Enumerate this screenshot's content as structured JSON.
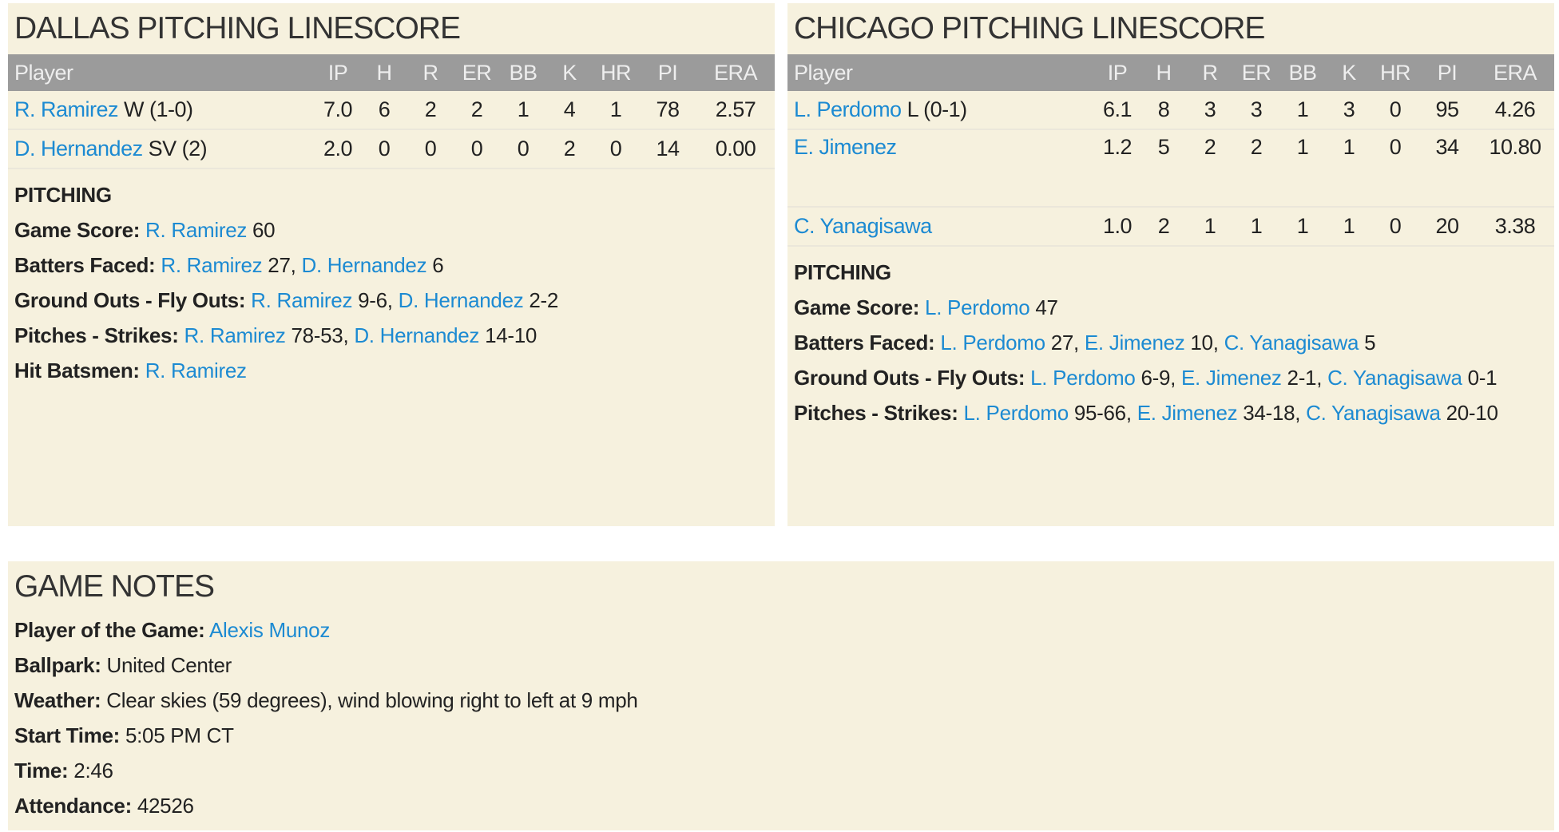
{
  "columns": [
    "Player",
    "IP",
    "H",
    "R",
    "ER",
    "BB",
    "K",
    "HR",
    "PI",
    "ERA"
  ],
  "dallas": {
    "title": "DALLAS PITCHING LINESCORE",
    "rows": [
      {
        "name": "R. Ramirez",
        "note": " W (1-0)",
        "stats": [
          "7.0",
          "6",
          "2",
          "2",
          "1",
          "4",
          "1",
          "78",
          "2.57"
        ]
      },
      {
        "name": "D. Hernandez",
        "note": " SV (2)",
        "stats": [
          "2.0",
          "0",
          "0",
          "0",
          "0",
          "2",
          "0",
          "14",
          "0.00"
        ]
      }
    ],
    "section_title": "PITCHING",
    "game_score": {
      "label": "Game Score:",
      "items": [
        {
          "name": "R. Ramirez",
          "val": " 60"
        }
      ]
    },
    "batters_faced": {
      "label": "Batters Faced:",
      "items": [
        {
          "name": "R. Ramirez",
          "val": " 27, "
        },
        {
          "name": "D. Hernandez",
          "val": " 6"
        }
      ]
    },
    "go_fo": {
      "label": "Ground Outs - Fly Outs:",
      "items": [
        {
          "name": "R. Ramirez",
          "val": " 9-6, "
        },
        {
          "name": "D. Hernandez",
          "val": " 2-2"
        }
      ]
    },
    "pitches": {
      "label": "Pitches - Strikes:",
      "items": [
        {
          "name": "R. Ramirez",
          "val": " 78-53, "
        },
        {
          "name": "D. Hernandez",
          "val": " 14-10"
        }
      ]
    },
    "hbp": {
      "label": "Hit Batsmen:",
      "items": [
        {
          "name": "R. Ramirez",
          "val": ""
        }
      ]
    }
  },
  "chicago": {
    "title": "CHICAGO PITCHING LINESCORE",
    "rows": [
      {
        "name": "L. Perdomo",
        "note": " L (0-1)",
        "stats": [
          "6.1",
          "8",
          "3",
          "3",
          "1",
          "3",
          "0",
          "95",
          "4.26"
        ]
      },
      {
        "name": "E. Jimenez",
        "note": "",
        "stats": [
          "1.2",
          "5",
          "2",
          "2",
          "1",
          "1",
          "0",
          "34",
          "10.80"
        ]
      },
      {
        "name": "C. Yanagisawa",
        "note": "",
        "stats": [
          "1.0",
          "2",
          "1",
          "1",
          "1",
          "1",
          "0",
          "20",
          "3.38"
        ]
      }
    ],
    "section_title": "PITCHING",
    "game_score": {
      "label": "Game Score:",
      "items": [
        {
          "name": "L. Perdomo",
          "val": " 47"
        }
      ]
    },
    "batters_faced": {
      "label": "Batters Faced:",
      "items": [
        {
          "name": "L. Perdomo",
          "val": " 27, "
        },
        {
          "name": "E. Jimenez",
          "val": " 10, "
        },
        {
          "name": "C. Yanagisawa",
          "val": " 5"
        }
      ]
    },
    "go_fo": {
      "label": "Ground Outs - Fly Outs:",
      "items": [
        {
          "name": "L. Perdomo",
          "val": " 6-9, "
        },
        {
          "name": "E. Jimenez",
          "val": " 2-1, "
        },
        {
          "name": "C. Yanagisawa",
          "val": " 0-1"
        }
      ]
    },
    "pitches": {
      "label": "Pitches - Strikes:",
      "items": [
        {
          "name": "L. Perdomo",
          "val": " 95-66, "
        },
        {
          "name": "E. Jimenez",
          "val": " 34-18, "
        },
        {
          "name": "C. Yanagisawa",
          "val": " 20-10"
        }
      ]
    }
  },
  "notes": {
    "title": "GAME NOTES",
    "player_of_game": {
      "label": "Player of the Game:",
      "value": "Alexis Munoz"
    },
    "ballpark": {
      "label": "Ballpark:",
      "value": " United Center"
    },
    "weather": {
      "label": "Weather:",
      "value": " Clear skies (59 degrees), wind blowing right to left at 9 mph"
    },
    "start_time": {
      "label": "Start Time:",
      "value": " 5:05 PM CT"
    },
    "time": {
      "label": "Time:",
      "value": " 2:46"
    },
    "attendance": {
      "label": "Attendance:",
      "value": " 42526"
    }
  }
}
